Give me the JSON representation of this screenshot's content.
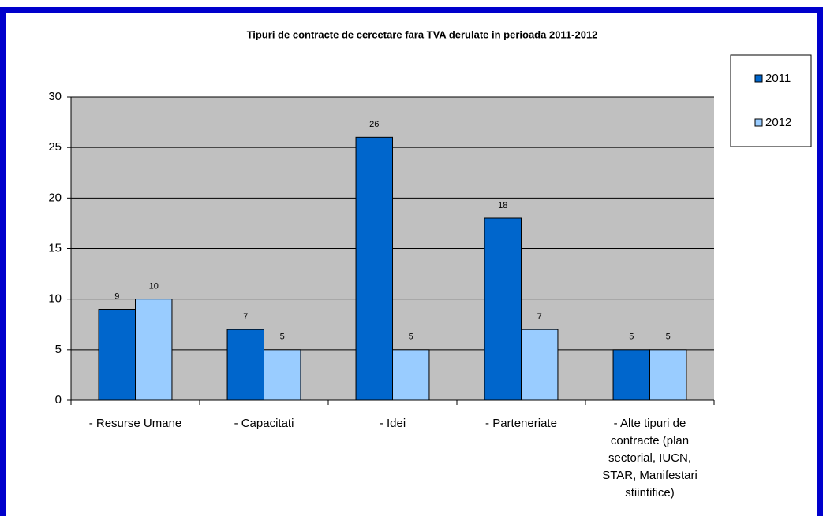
{
  "chart_data": {
    "type": "bar",
    "title": "Tipuri de contracte de cercetare fara TVA derulate in perioada 2011-2012",
    "categories": [
      "- Resurse Umane",
      "- Capacitati",
      "- Idei",
      "- Parteneriate",
      "- Alte tipuri de contracte (plan sectorial, IUCN, STAR, Manifestari stiintifice)"
    ],
    "series": [
      {
        "name": "2011",
        "color": "#0066cc",
        "values": [
          9,
          7,
          26,
          18,
          5
        ]
      },
      {
        "name": "2012",
        "color": "#99ccff",
        "values": [
          10,
          5,
          5,
          7,
          5
        ]
      }
    ],
    "ylim": [
      0,
      30
    ],
    "yticks": [
      0,
      5,
      10,
      15,
      20,
      25,
      30
    ],
    "grid": true,
    "legend_position": "right"
  }
}
